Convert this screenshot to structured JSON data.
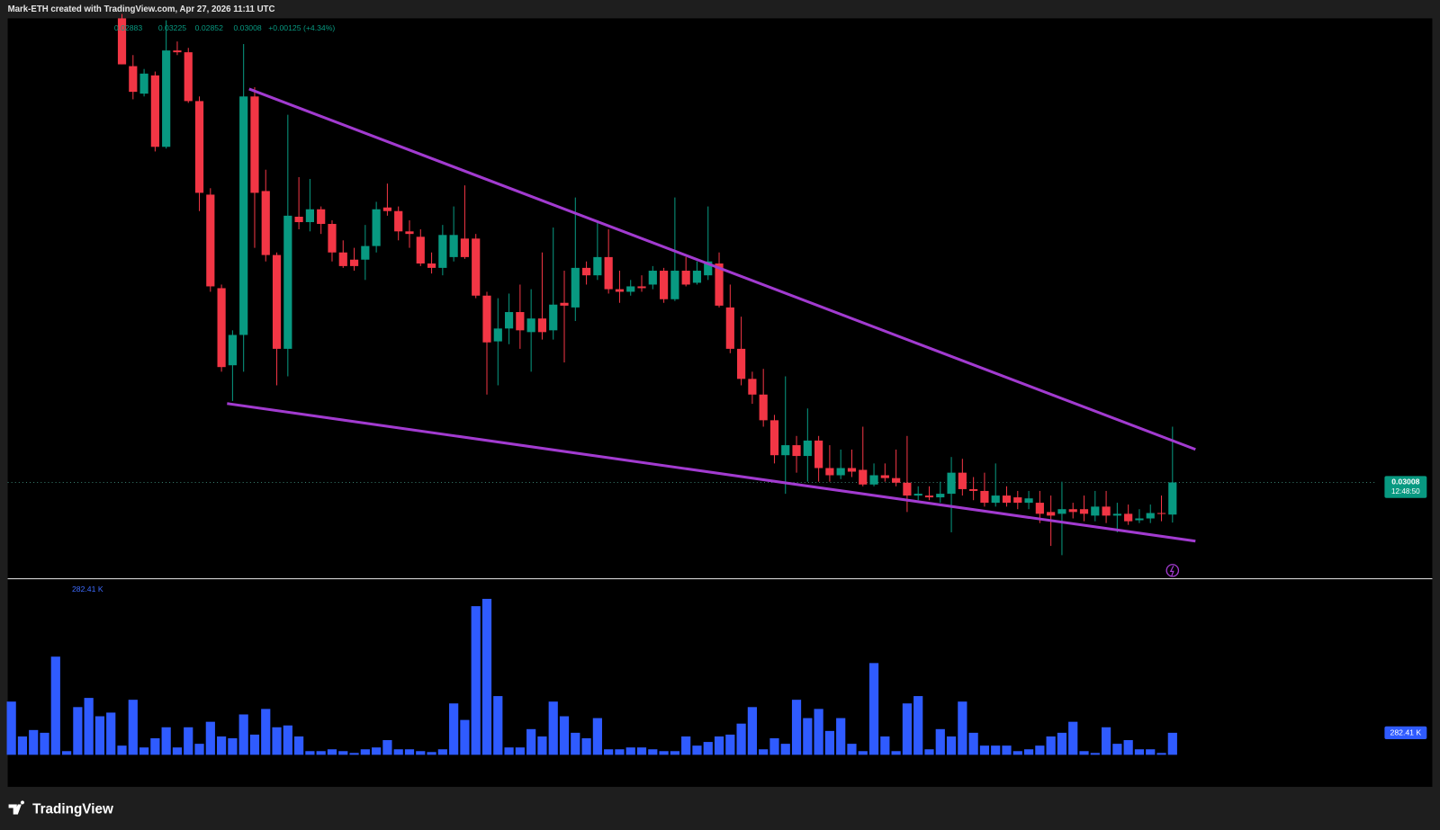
{
  "header": "Mark-ETH created with TradingView.com, Apr 27, 2026 11:11 UTC",
  "footer": "TradingView",
  "chart_data": {
    "type": "candlestick",
    "up_color": "#089981",
    "down_color": "#f23645",
    "ylim": [
      0.02637,
      0.04814
    ],
    "change_label": "+0.00125 (+4.34%)",
    "countdown": "12:48:50",
    "open": [
      null,
      null,
      null,
      null,
      null,
      null,
      null,
      null,
      null,
      null,
      0.04814,
      0.04628,
      0.04521,
      0.04592,
      0.04314,
      0.04689,
      0.04682,
      0.04492,
      0.04128,
      0.03764,
      0.03464,
      0.03582,
      0.0451,
      0.04142,
      0.03893,
      0.03528,
      0.04042,
      0.04021,
      0.04071,
      0.04014,
      0.03903,
      0.03875,
      0.03875,
      0.03928,
      0.04078,
      0.04064,
      0.03985,
      0.03964,
      0.0386,
      0.03843,
      0.03885,
      0.03957,
      0.03957,
      0.03735,
      0.03557,
      0.03607,
      0.03671,
      0.03593,
      0.03646,
      0.036,
      0.03707,
      0.03689,
      0.03843,
      0.03814,
      0.03885,
      0.0376,
      0.0375,
      0.03771,
      0.03778,
      0.03832,
      0.03721,
      0.03832,
      0.03785,
      0.03814,
      0.0386,
      0.03689,
      0.03528,
      0.03411,
      0.0335,
      0.0325,
      0.03114,
      0.03153,
      0.03111,
      0.03171,
      0.03064,
      0.03036,
      0.03064,
      0.03057,
      0.03,
      0.03036,
      0.03025,
      0.03007,
      0.02957,
      0.02957,
      0.0295,
      0.02964,
      0.03046,
      0.02982,
      0.02975,
      0.02929,
      0.02957,
      0.0295,
      0.02929,
      0.02929,
      0.02893,
      0.02886,
      0.02904,
      0.02904,
      0.02879,
      0.02914,
      0.02879,
      0.02886,
      0.02861,
      0.02868,
      0.02889,
      0.02883
    ],
    "high": [
      null,
      null,
      null,
      null,
      null,
      null,
      null,
      null,
      null,
      null,
      0.04831,
      0.04671,
      0.04617,
      0.04607,
      0.04806,
      0.04724,
      0.04699,
      0.0451,
      0.04153,
      0.03778,
      0.036,
      0.04714,
      0.04546,
      0.04225,
      0.03903,
      0.04439,
      0.04196,
      0.04189,
      0.04082,
      0.04028,
      0.0395,
      0.03921,
      0.0401,
      0.041,
      0.04171,
      0.04082,
      0.04028,
      0.03993,
      0.03903,
      0.0401,
      0.04082,
      0.04164,
      0.03975,
      0.0375,
      0.03725,
      0.03743,
      0.03778,
      0.0376,
      0.03903,
      0.04,
      0.03832,
      0.04117,
      0.03868,
      0.04028,
      0.03993,
      0.03832,
      0.03796,
      0.03814,
      0.0385,
      0.03843,
      0.04117,
      0.03885,
      0.03868,
      0.04082,
      0.03903,
      0.03778,
      0.03653,
      0.03439,
      0.0345,
      0.03271,
      0.03421,
      0.03189,
      0.03296,
      0.03189,
      0.03153,
      0.03136,
      0.03136,
      0.03225,
      0.03082,
      0.03082,
      0.03136,
      0.03189,
      0.02993,
      0.02993,
      0.03011,
      0.03107,
      0.031,
      0.03029,
      0.03046,
      0.03082,
      0.02993,
      0.02975,
      0.02975,
      0.02975,
      0.02957,
      0.03011,
      0.02929,
      0.02957,
      0.02975,
      0.02975,
      0.02929,
      0.02922,
      0.02904,
      0.02922,
      0.02957,
      0.03225
    ],
    "low": [
      null,
      null,
      null,
      null,
      null,
      null,
      null,
      null,
      null,
      null,
      0.04635,
      0.04499,
      0.0451,
      0.04296,
      0.04307,
      0.04671,
      0.04485,
      0.04064,
      0.0375,
      0.03439,
      0.03325,
      0.03439,
      0.03921,
      0.03868,
      0.03386,
      0.03421,
      0.03993,
      0.03985,
      0.03975,
      0.03868,
      0.03843,
      0.03832,
      0.03796,
      0.03903,
      0.04046,
      0.0395,
      0.03921,
      0.0385,
      0.03821,
      0.03814,
      0.03868,
      0.03878,
      0.03725,
      0.0335,
      0.03386,
      0.03546,
      0.03528,
      0.03439,
      0.03564,
      0.03564,
      0.03475,
      0.03636,
      0.03778,
      0.03796,
      0.03743,
      0.03707,
      0.03735,
      0.0375,
      0.0376,
      0.03707,
      0.03714,
      0.03771,
      0.03778,
      0.03796,
      0.03689,
      0.03511,
      0.03386,
      0.03314,
      0.03225,
      0.03082,
      0.02964,
      0.03046,
      0.03011,
      0.03011,
      0.03011,
      0.03021,
      0.03029,
      0.02993,
      0.02993,
      0.03011,
      0.02993,
      0.02893,
      0.02939,
      0.02939,
      0.02929,
      0.02814,
      0.02957,
      0.02939,
      0.02914,
      0.02914,
      0.02914,
      0.02904,
      0.02904,
      0.0285,
      0.02761,
      0.02725,
      0.02868,
      0.02857,
      0.02857,
      0.0285,
      0.02814,
      0.02843,
      0.0285,
      0.0285,
      0.02857,
      0.02852
    ],
    "close": [
      null,
      null,
      null,
      null,
      null,
      null,
      null,
      null,
      null,
      null,
      0.04635,
      0.04528,
      0.04599,
      0.04314,
      0.04689,
      0.04682,
      0.04492,
      0.04135,
      0.03771,
      0.03457,
      0.03582,
      0.0451,
      0.04135,
      0.03893,
      0.03528,
      0.04046,
      0.04021,
      0.04071,
      0.04014,
      0.03903,
      0.0385,
      0.0385,
      0.03928,
      0.04071,
      0.04064,
      0.03985,
      0.03975,
      0.0386,
      0.03843,
      0.03971,
      0.03971,
      0.03885,
      0.03735,
      0.03553,
      0.03607,
      0.03671,
      0.036,
      0.03646,
      0.03593,
      0.037,
      0.03696,
      0.03843,
      0.03814,
      0.03885,
      0.0376,
      0.0375,
      0.03771,
      0.03764,
      0.03832,
      0.03721,
      0.03832,
      0.03778,
      0.03832,
      0.03868,
      0.03696,
      0.03528,
      0.03411,
      0.0335,
      0.0325,
      0.03114,
      0.03153,
      0.03111,
      0.03171,
      0.03064,
      0.03036,
      0.03064,
      0.0305,
      0.03,
      0.03036,
      0.03025,
      0.03007,
      0.02957,
      0.02964,
      0.0295,
      0.02964,
      0.03046,
      0.02982,
      0.02975,
      0.02929,
      0.02957,
      0.02929,
      0.02929,
      0.02946,
      0.02886,
      0.02879,
      0.02904,
      0.02893,
      0.02886,
      0.02914,
      0.02879,
      0.02886,
      0.02857,
      0.02868,
      0.02889,
      0.02886,
      0.03008
    ],
    "volume": {
      "color": "#2f5bff",
      "ylim": [
        0,
        2100000
      ],
      "last_value_label": "282.41 K",
      "values": [
        682500,
        235300,
        317700,
        282400,
        1259100,
        47100,
        611900,
        729600,
        494200,
        541300,
        117700,
        706000,
        94100,
        211800,
        353000,
        94100,
        353000,
        141200,
        423600,
        235300,
        211800,
        517700,
        258900,
        588400,
        353000,
        376500,
        235300,
        47100,
        47100,
        70600,
        47100,
        23500,
        70600,
        94100,
        188300,
        70600,
        70600,
        47100,
        35300,
        70600,
        659000,
        447100,
        1906300,
        2000400,
        753100,
        94100,
        94100,
        329500,
        235300,
        682500,
        494200,
        282400,
        211800,
        470700,
        70600,
        70600,
        94100,
        94100,
        70600,
        47100,
        47100,
        235300,
        117700,
        164700,
        235300,
        258900,
        400100,
        611900,
        70600,
        211800,
        141200,
        706000,
        470700,
        588400,
        305900,
        470700,
        141200,
        47100,
        1176700,
        235300,
        47100,
        659000,
        753100,
        70600,
        329500,
        235300,
        682500,
        282400,
        117700,
        117700,
        117700,
        47100,
        70600,
        117700,
        235300,
        282400,
        423600,
        47100,
        23500,
        353000,
        141200,
        188300,
        70600,
        70600,
        23500,
        282410
      ]
    }
  }
}
